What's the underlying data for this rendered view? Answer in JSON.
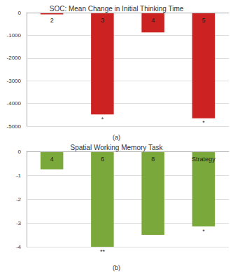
{
  "chart_data": [
    {
      "type": "bar",
      "title": "SOC: Mean Change in Initial Thinking Time",
      "caption": "(a)",
      "categories": [
        "2",
        "3",
        "4",
        "5"
      ],
      "values": [
        -80,
        -4480,
        -870,
        -4650
      ],
      "color": "#cc2222",
      "ylim": [
        -5000,
        0
      ],
      "yticks": [
        -5000,
        -4000,
        -3000,
        -2000,
        -1000,
        0
      ],
      "grid": true,
      "annotations": [
        {
          "category": "3",
          "text": "*"
        },
        {
          "category": "5",
          "text": "*"
        }
      ]
    },
    {
      "type": "bar",
      "title": "Spatial Working Memory Task",
      "caption": "(b)",
      "categories": [
        "4",
        "6",
        "8",
        "Strategy"
      ],
      "values": [
        -0.75,
        -4.0,
        -3.5,
        -3.15
      ],
      "color": "#7aa83a",
      "ylim": [
        -4,
        0
      ],
      "yticks": [
        -4,
        -3,
        -2,
        -1,
        0
      ],
      "grid": true,
      "annotations": [
        {
          "category": "6",
          "text": "**"
        },
        {
          "category": "Strategy",
          "text": "*"
        }
      ]
    }
  ]
}
